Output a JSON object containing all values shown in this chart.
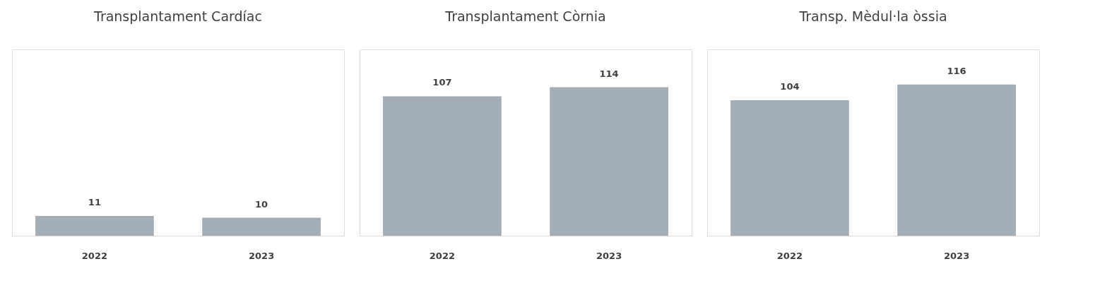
{
  "chart_data": [
    {
      "type": "bar",
      "title": "Transplantament Cardíac",
      "categories": [
        "2022",
        "2023"
      ],
      "values": [
        11,
        10
      ],
      "color": "#a2adb5",
      "ylim": [
        0,
        104
      ],
      "data_labels": true,
      "tick_labels": "x"
    },
    {
      "type": "bar",
      "title": "Transplantament Còrnia",
      "categories": [
        "2022",
        "2023"
      ],
      "values": [
        107,
        114
      ],
      "color": "#a2adb5",
      "ylim": [
        0,
        143
      ],
      "data_labels": true,
      "tick_labels": "x"
    },
    {
      "type": "bar",
      "title": "Transp. Mèdul·la òssia",
      "categories": [
        "2022",
        "2023"
      ],
      "values": [
        104,
        116
      ],
      "color": "#a2adb5",
      "ylim": [
        0,
        143
      ],
      "data_labels": true,
      "tick_labels": "x"
    }
  ]
}
